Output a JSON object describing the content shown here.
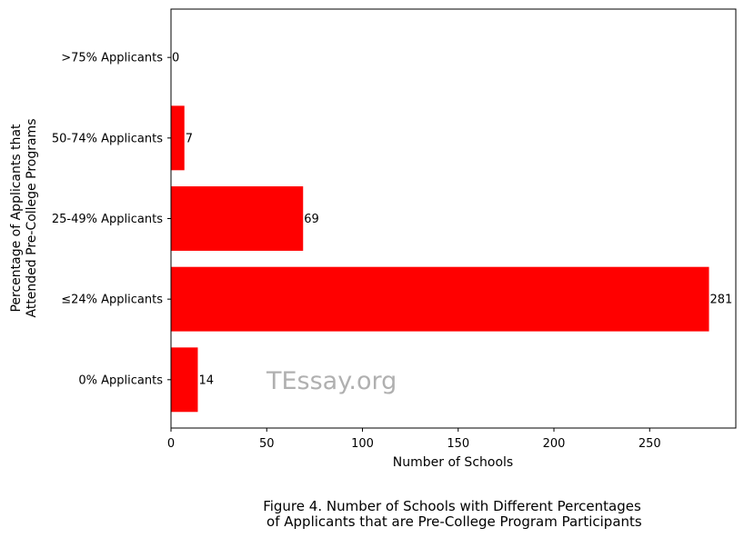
{
  "chart_data": {
    "type": "bar",
    "orientation": "horizontal",
    "categories": [
      "0% Applicants",
      "≤24% Applicants",
      "25-49% Applicants",
      "50-74% Applicants",
      ">75% Applicants"
    ],
    "values": [
      14,
      281,
      69,
      7,
      0
    ],
    "data_labels": [
      "14",
      "281",
      "69",
      "7",
      "0"
    ],
    "xlabel": "Number of Schools",
    "ylabel_lines": [
      "Percentage of Applicants that",
      "Attended Pre-College Programs"
    ],
    "xlim": [
      0,
      295
    ],
    "xticks": [
      0,
      50,
      100,
      150,
      200,
      250
    ],
    "grid": false,
    "bar_color": "#ff0000"
  },
  "watermark": "TEssay.org",
  "caption_lines": [
    "Figure 4. Number of Schools with Different Percentages",
    " of Applicants that are Pre-College Program Participants"
  ]
}
